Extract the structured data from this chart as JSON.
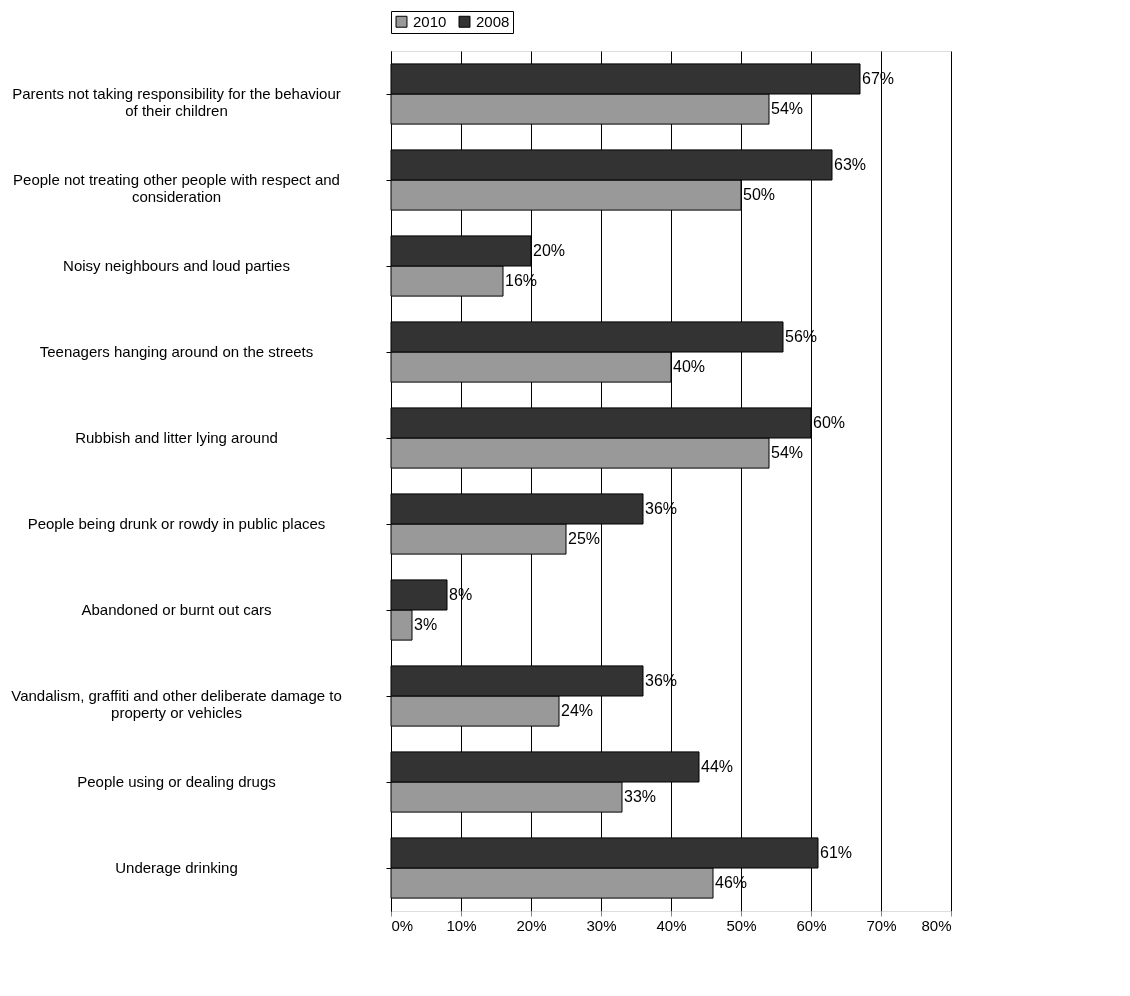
{
  "chart_data": {
    "type": "bar",
    "orientation": "horizontal",
    "categories": [
      "Parents not taking responsibility for the behaviour of their children",
      "People not treating other people with respect and consideration",
      "Noisy neighbours and loud parties",
      "Teenagers hanging around on the streets",
      "Rubbish and litter lying around",
      "People being drunk or rowdy in public places",
      "Abandoned or burnt out cars",
      "Vandalism, graffiti and other deliberate damage to property or vehicles",
      "People using or dealing drugs",
      "Underage drinking"
    ],
    "series": [
      {
        "name": "2010",
        "color": "#999999",
        "values": [
          54,
          50,
          16,
          40,
          54,
          25,
          3,
          24,
          33,
          46
        ],
        "value_labels": [
          "54%",
          "50%",
          "16%",
          "40%",
          "54%",
          "25%",
          "3%",
          "24%",
          "33%",
          "46%"
        ]
      },
      {
        "name": "2008",
        "color": "#333333",
        "values": [
          67,
          63,
          20,
          56,
          60,
          36,
          8,
          36,
          44,
          61
        ],
        "value_labels": [
          "67%",
          "63%",
          "20%",
          "56%",
          "60%",
          "36%",
          "8%",
          "36%",
          "44%",
          "61%"
        ]
      }
    ],
    "xlim": [
      0,
      80
    ],
    "xticks": [
      {
        "value": 0,
        "label": "0%"
      },
      {
        "value": 10,
        "label": "10%"
      },
      {
        "value": 20,
        "label": "20%"
      },
      {
        "value": 30,
        "label": "30%"
      },
      {
        "value": 40,
        "label": "40%"
      },
      {
        "value": 50,
        "label": "50%"
      },
      {
        "value": 60,
        "label": "60%"
      },
      {
        "value": 70,
        "label": "70%"
      },
      {
        "value": 80,
        "label": "80%"
      }
    ],
    "grid": "x",
    "legend": "top"
  }
}
